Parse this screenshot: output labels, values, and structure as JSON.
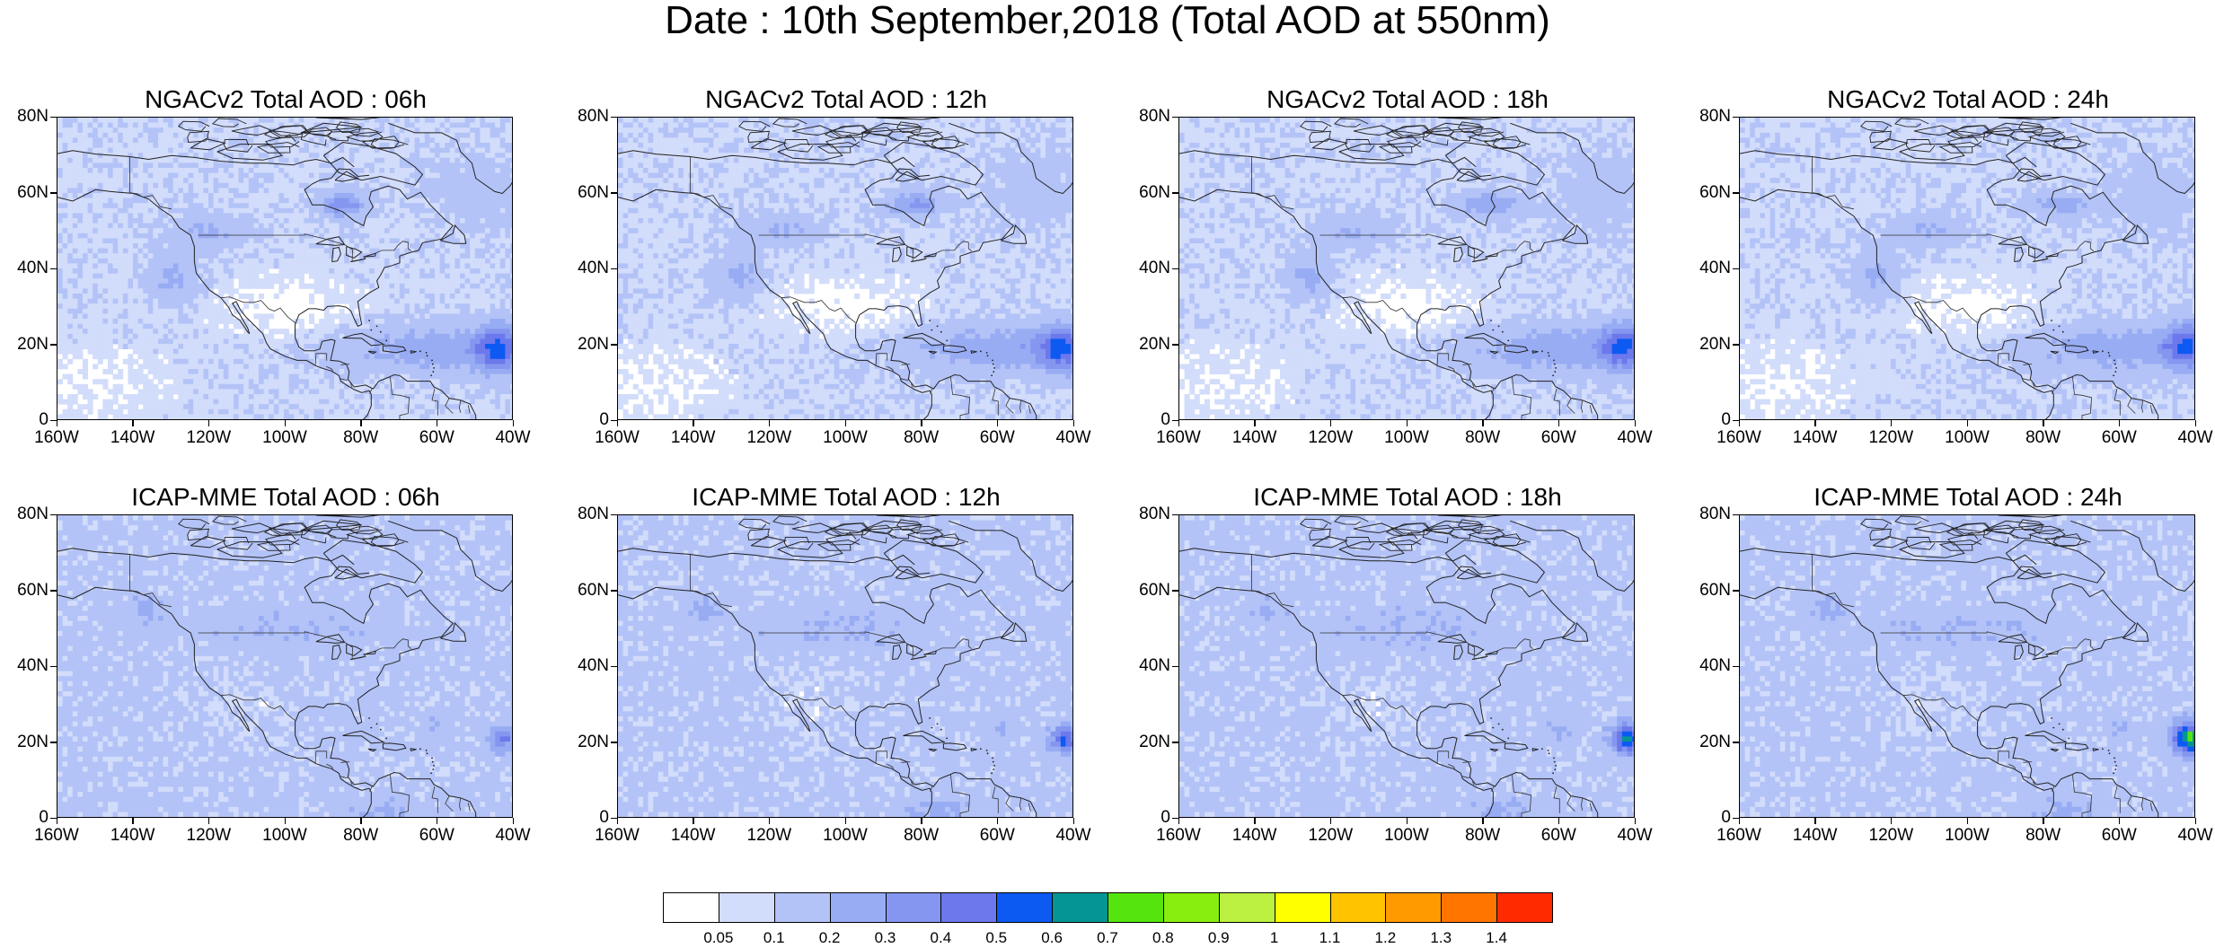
{
  "title": "Date : 10th September,2018 (Total AOD at 550nm)",
  "panels": [
    {
      "title": "NGACv2 Total AOD : 06h",
      "model": "NGACv2",
      "hour": "06h"
    },
    {
      "title": "NGACv2 Total AOD : 12h",
      "model": "NGACv2",
      "hour": "12h"
    },
    {
      "title": "NGACv2 Total AOD : 18h",
      "model": "NGACv2",
      "hour": "18h"
    },
    {
      "title": "NGACv2 Total AOD : 24h",
      "model": "NGACv2",
      "hour": "24h"
    },
    {
      "title": "ICAP-MME Total AOD : 06h",
      "model": "ICAP-MME",
      "hour": "06h"
    },
    {
      "title": "ICAP-MME Total AOD : 12h",
      "model": "ICAP-MME",
      "hour": "12h"
    },
    {
      "title": "ICAP-MME Total AOD : 18h",
      "model": "ICAP-MME",
      "hour": "18h"
    },
    {
      "title": "ICAP-MME Total AOD : 24h",
      "model": "ICAP-MME",
      "hour": "24h"
    }
  ],
  "map": {
    "lat_ticks": [
      "80N",
      "60N",
      "40N",
      "20N",
      "0"
    ],
    "lon_ticks": [
      "160W",
      "140W",
      "120W",
      "100W",
      "80W",
      "60W",
      "40W"
    ],
    "lat_range": [
      0,
      80
    ],
    "lon_range": [
      -160,
      -40
    ]
  },
  "colorbar": {
    "labels": [
      "0.05",
      "0.1",
      "0.2",
      "0.3",
      "0.4",
      "0.5",
      "0.6",
      "0.7",
      "0.8",
      "0.9",
      "1",
      "1.1",
      "1.2",
      "1.3",
      "1.4"
    ],
    "colors": [
      "#ffffff",
      "#d2dcfb",
      "#b3c3f7",
      "#98acf4",
      "#8596f0",
      "#6c78ec",
      "#0d5af2",
      "#059595",
      "#55e40e",
      "#88ee0e",
      "#bbf040",
      "#ffff00",
      "#ffc300",
      "#ff9a00",
      "#ff7500",
      "#ff2a00"
    ]
  }
}
